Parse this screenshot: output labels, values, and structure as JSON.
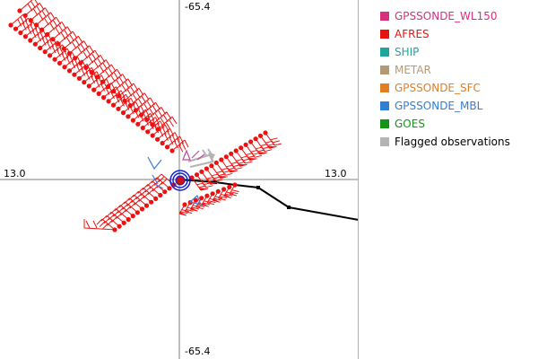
{
  "axes": {
    "top": "-65.4",
    "bottom": "-65.4",
    "left": "13.0",
    "right": "13.0"
  },
  "legend": [
    {
      "label": "GPSSONDE_WL150",
      "color": "#d6307f"
    },
    {
      "label": "AFRES",
      "color": "#e8140c"
    },
    {
      "label": "SHIP",
      "color": "#1fa59a"
    },
    {
      "label": "METAR",
      "color": "#b29a78"
    },
    {
      "label": "GPSSONDE_SFC",
      "color": "#e07f22"
    },
    {
      "label": "GPSSONDE_MBL",
      "color": "#2f7fd6"
    },
    {
      "label": "GOES",
      "color": "#149414"
    },
    {
      "label": "Flagged observations",
      "color": "#b4b4b4"
    }
  ],
  "colors": {
    "afres": "#ee1111",
    "track": "#000000",
    "center": "#1020d0",
    "axis": "#808080",
    "flagged": "#b4b4b4",
    "mbl": "#3a7fd8",
    "wl150": "#c04aa0"
  }
}
